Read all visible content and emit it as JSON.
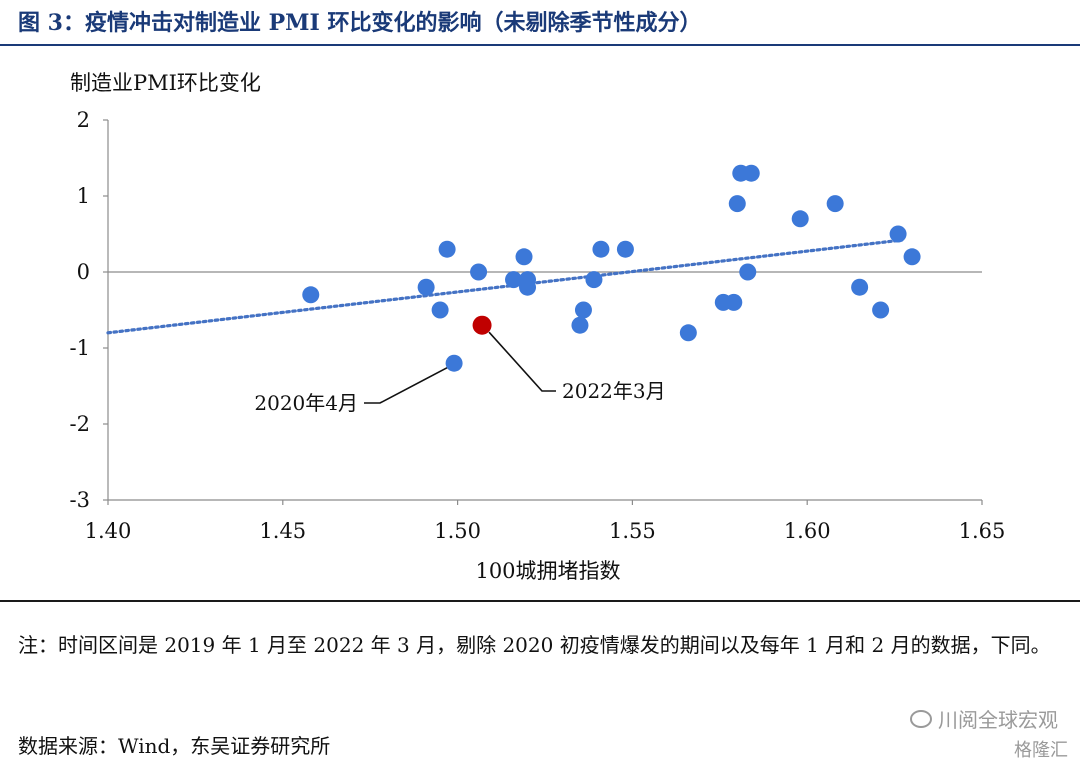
{
  "header": {
    "title": "图 3：疫情冲击对制造业 PMI 环比变化的影响（未剔除季节性成分）"
  },
  "chart_data": {
    "type": "scatter",
    "title": "",
    "ylabel": "制造业PMI环比变化",
    "xlabel": "100城拥堵指数",
    "xlim": [
      1.4,
      1.65
    ],
    "ylim": [
      -3,
      2
    ],
    "xticks": [
      "1.40",
      "1.45",
      "1.50",
      "1.55",
      "1.60",
      "1.65"
    ],
    "yticks": [
      "2",
      "1",
      "0",
      "-1",
      "-2",
      "-3"
    ],
    "grid": false,
    "point_color": "#3c78d8",
    "highlight_color": "#c00000",
    "trendline_color": "#4472c4",
    "trendline": {
      "x": [
        1.4,
        1.627
      ],
      "y": [
        -0.8,
        0.42
      ]
    },
    "points": [
      {
        "x": 1.458,
        "y": -0.3
      },
      {
        "x": 1.491,
        "y": -0.2
      },
      {
        "x": 1.495,
        "y": -0.5
      },
      {
        "x": 1.497,
        "y": 0.3
      },
      {
        "x": 1.499,
        "y": -1.2
      },
      {
        "x": 1.506,
        "y": 0.0
      },
      {
        "x": 1.516,
        "y": -0.1
      },
      {
        "x": 1.519,
        "y": 0.2
      },
      {
        "x": 1.52,
        "y": -0.1
      },
      {
        "x": 1.52,
        "y": -0.2
      },
      {
        "x": 1.535,
        "y": -0.7
      },
      {
        "x": 1.536,
        "y": -0.5
      },
      {
        "x": 1.539,
        "y": -0.1
      },
      {
        "x": 1.541,
        "y": 0.3
      },
      {
        "x": 1.548,
        "y": 0.3
      },
      {
        "x": 1.566,
        "y": -0.8
      },
      {
        "x": 1.576,
        "y": -0.4
      },
      {
        "x": 1.579,
        "y": -0.4
      },
      {
        "x": 1.58,
        "y": 0.9
      },
      {
        "x": 1.581,
        "y": 1.3
      },
      {
        "x": 1.583,
        "y": 0.0
      },
      {
        "x": 1.584,
        "y": 1.3
      },
      {
        "x": 1.598,
        "y": 0.7
      },
      {
        "x": 1.608,
        "y": 0.9
      },
      {
        "x": 1.615,
        "y": -0.2
      },
      {
        "x": 1.621,
        "y": -0.5
      },
      {
        "x": 1.626,
        "y": 0.5
      },
      {
        "x": 1.63,
        "y": 0.2
      }
    ],
    "highlight_point": {
      "x": 1.507,
      "y": -0.7
    },
    "annotations": [
      {
        "label": "2020年4月",
        "point": {
          "x": 1.499,
          "y": -1.2
        }
      },
      {
        "label": "2022年3月",
        "point": {
          "x": 1.507,
          "y": -0.7
        }
      }
    ]
  },
  "footer": {
    "note": "注：时间区间是 2019 年 1 月至 2022 年 3 月，剔除 2020 初疫情爆发的期间以及每年 1 月和 2 月的数据，下同。",
    "source": "数据来源：Wind，东吴证券研究所",
    "watermark": "川阅全球宏观",
    "watermark2": "格隆汇"
  }
}
